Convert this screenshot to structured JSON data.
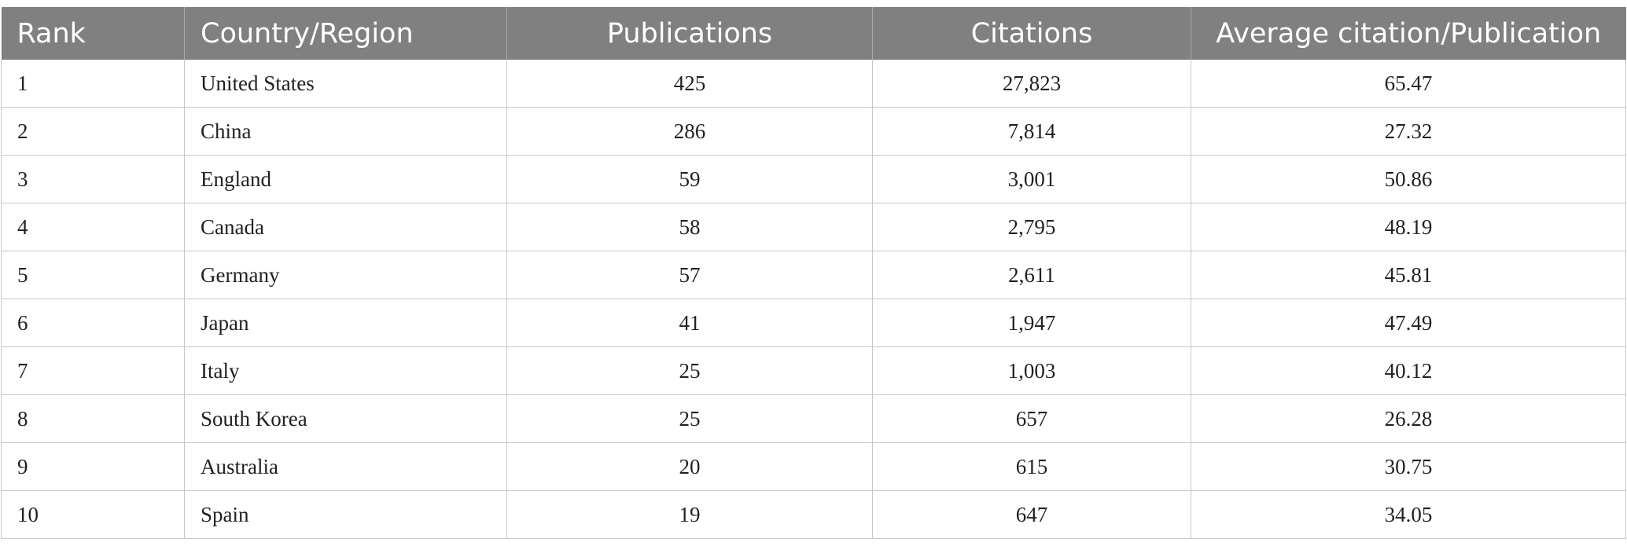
{
  "table": {
    "headers": [
      "Rank",
      "Country/Region",
      "Publications",
      "Citations",
      "Average citation/Publication"
    ],
    "rows": [
      [
        "1",
        "United States",
        "425",
        "27,823",
        "65.47"
      ],
      [
        "2",
        "China",
        "286",
        "7,814",
        "27.32"
      ],
      [
        "3",
        "England",
        "59",
        "3,001",
        "50.86"
      ],
      [
        "4",
        "Canada",
        "58",
        "2,795",
        "48.19"
      ],
      [
        "5",
        "Germany",
        "57",
        "2,611",
        "45.81"
      ],
      [
        "6",
        "Japan",
        "41",
        "1,947",
        "47.49"
      ],
      [
        "7",
        "Italy",
        "25",
        "1,003",
        "40.12"
      ],
      [
        "8",
        "South Korea",
        "25",
        "657",
        "26.28"
      ],
      [
        "9",
        "Australia",
        "20",
        "615",
        "30.75"
      ],
      [
        "10",
        "Spain",
        "19",
        "647",
        "34.05"
      ]
    ]
  },
  "colors": {
    "header_background": "#7f807f",
    "header_text": "#ffffff",
    "grid_line": "#c8c8c8",
    "body_text": "#231f20"
  }
}
